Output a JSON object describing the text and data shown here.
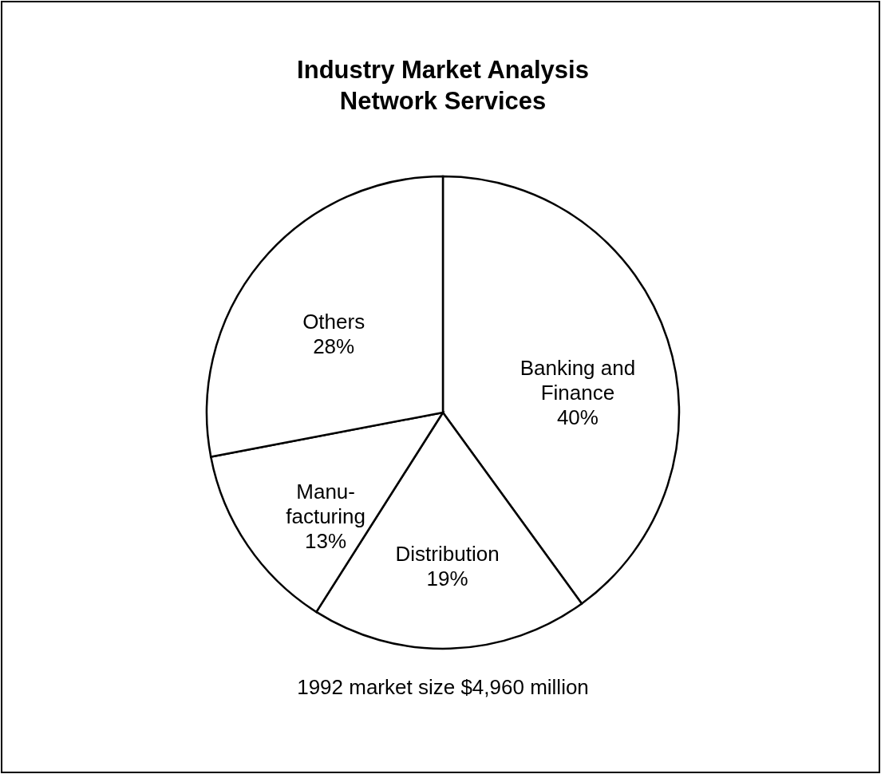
{
  "chart_data": {
    "type": "pie",
    "title": "Industry Market Analysis\nNetwork Services",
    "categories": [
      "Banking and\nFinance",
      "Distribution",
      "Manu-\nfacturing",
      "Others"
    ],
    "values": [
      40,
      19,
      13,
      28
    ],
    "colors": [
      "#ffffff",
      "#ffffff",
      "#ffffff",
      "#ffffff"
    ],
    "value_labels": [
      "40%",
      "19%",
      "13%",
      "28%"
    ],
    "annotations": [
      "1992 market size $4,960 million"
    ]
  }
}
